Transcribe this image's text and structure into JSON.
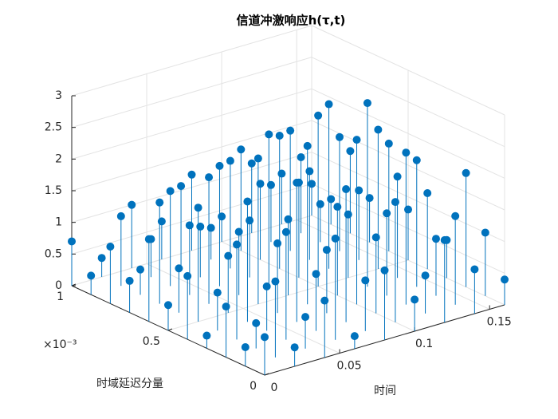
{
  "chart_data": {
    "type": "stem3",
    "title": "信道冲激响应h(τ,t)",
    "xlabel": "时间",
    "ylabel": "时域延迟分量",
    "y_multiplier": "×10⁻³",
    "color": "#0072bd",
    "grid": true,
    "x": [
      0,
      0.02,
      0.04,
      0.06,
      0.08,
      0.1,
      0.12,
      0.14,
      0.16
    ],
    "y": [
      0,
      0.0001,
      0.0002,
      0.0003,
      0.0004,
      0.0005,
      0.0006,
      0.0007,
      0.0008,
      0.0009,
      0.001
    ],
    "values": [
      [
        0.6,
        0.3,
        0.9,
        0.2,
        1.1,
        0.5,
        1.3,
        0.7,
        0.4
      ],
      [
        0.3,
        1.2,
        0.5,
        1.6,
        0.8,
        1.9,
        0.6,
        1.4,
        1.0
      ],
      [
        0.8,
        0.4,
        1.7,
        0.9,
        2.1,
        1.2,
        2.4,
        0.9,
        1.8
      ],
      [
        0.2,
        1.5,
        0.7,
        2.2,
        1.0,
        2.6,
        1.3,
        2.0,
        0.6
      ],
      [
        1.0,
        0.6,
        1.9,
        1.1,
        2.5,
        1.4,
        2.9,
        1.6,
        1.2
      ],
      [
        0.4,
        1.8,
        0.9,
        2.3,
        1.2,
        2.7,
        1.0,
        2.2,
        0.8
      ],
      [
        1.3,
        0.7,
        2.0,
        1.0,
        2.4,
        1.5,
        2.6,
        1.1,
        1.7
      ],
      [
        0.5,
        1.6,
        1.1,
        1.9,
        0.9,
        2.1,
        1.4,
        1.8,
        0.7
      ],
      [
        0.9,
        0.4,
        1.5,
        0.8,
        1.7,
        1.2,
        1.9,
        0.6,
        1.3
      ],
      [
        0.3,
        1.1,
        0.6,
        1.3,
        0.5,
        1.6,
        0.9,
        1.2,
        0.4
      ],
      [
        0.7,
        0.3,
        1.0,
        0.6,
        1.2,
        0.4,
        1.1,
        0.8,
        0.5
      ]
    ],
    "xlim": [
      0,
      0.16
    ],
    "xticks": [
      0,
      0.05,
      0.1,
      0.15
    ],
    "ylim": [
      0,
      0.001
    ],
    "yticks": [
      {
        "value": 0,
        "label": "0"
      },
      {
        "value": 0.0005,
        "label": "0.5"
      },
      {
        "value": 0.001,
        "label": "1"
      }
    ],
    "zlim": [
      0,
      3
    ],
    "zticks": [
      0,
      0.5,
      1,
      1.5,
      2,
      2.5,
      3
    ]
  }
}
